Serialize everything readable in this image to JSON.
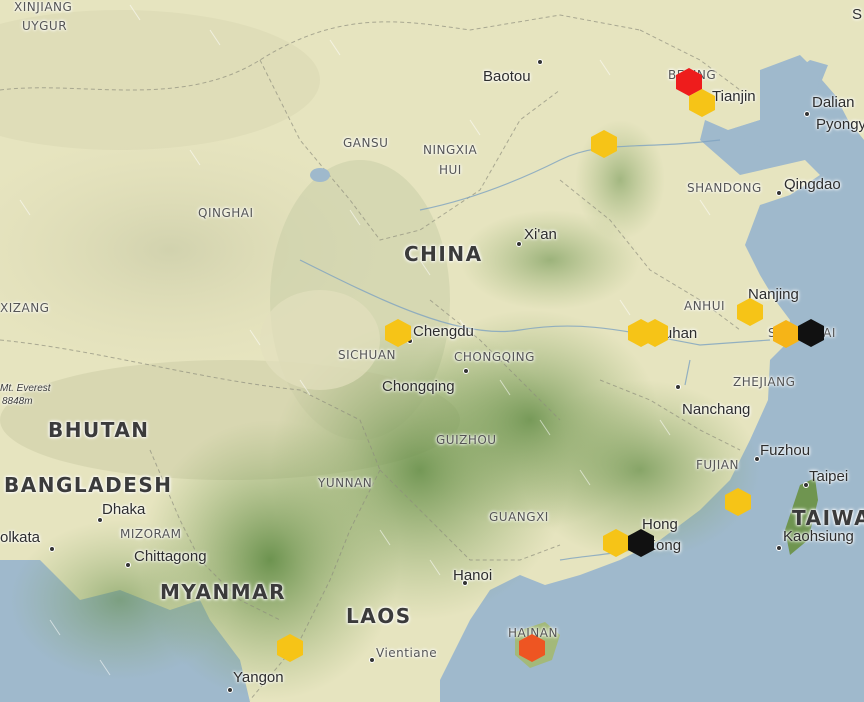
{
  "countries": [
    {
      "id": "china",
      "label": "CHINA"
    },
    {
      "id": "bhutan",
      "label": "BHUTAN"
    },
    {
      "id": "bangladesh",
      "label": "BANGLADESH"
    },
    {
      "id": "myanmar",
      "label": "MYANMAR"
    },
    {
      "id": "laos",
      "label": "LAOS"
    },
    {
      "id": "taiwan",
      "label": "TAIWA"
    }
  ],
  "provinces": [
    {
      "id": "xinjiang",
      "label": "XINJIANG"
    },
    {
      "id": "uygur",
      "label": "UYGUR"
    },
    {
      "id": "gansu",
      "label": "GANSU"
    },
    {
      "id": "ningxia",
      "label": "NINGXIA"
    },
    {
      "id": "hui",
      "label": "HUI"
    },
    {
      "id": "qinghai",
      "label": "QINGHAI"
    },
    {
      "id": "xizang",
      "label": "XIZANG"
    },
    {
      "id": "shandong",
      "label": "SHANDONG"
    },
    {
      "id": "anhui",
      "label": "ANHUI"
    },
    {
      "id": "sichuan",
      "label": "SICHUAN"
    },
    {
      "id": "chongqing-prov",
      "label": "CHONGQING"
    },
    {
      "id": "zhejiang",
      "label": "ZHEJIANG"
    },
    {
      "id": "guizhou",
      "label": "GUIZHOU"
    },
    {
      "id": "fujian",
      "label": "FUJIAN"
    },
    {
      "id": "yunnan",
      "label": "YUNNAN"
    },
    {
      "id": "guangxi",
      "label": "GUANGXI"
    },
    {
      "id": "mizoram",
      "label": "MIZORAM"
    },
    {
      "id": "hainan",
      "label": "HAINAN"
    }
  ],
  "cities": [
    {
      "id": "baotou",
      "label": "Baotou"
    },
    {
      "id": "beijing",
      "label": "BEIJING"
    },
    {
      "id": "tianjin",
      "label": "Tianjin"
    },
    {
      "id": "dalian",
      "label": "Dalian"
    },
    {
      "id": "pyongyang",
      "label": "Pyongy"
    },
    {
      "id": "qingdao",
      "label": "Qingdao"
    },
    {
      "id": "xian",
      "label": "Xi'an"
    },
    {
      "id": "nanjing",
      "label": "Nanjing"
    },
    {
      "id": "shanghai",
      "label": "SHANGHAI"
    },
    {
      "id": "wuhan",
      "label": "Wuhan"
    },
    {
      "id": "chengdu",
      "label": "Chengdu"
    },
    {
      "id": "chongqing",
      "label": "Chongqing"
    },
    {
      "id": "nanchang",
      "label": "Nanchang"
    },
    {
      "id": "fuzhou",
      "label": "Fuzhou"
    },
    {
      "id": "taipei",
      "label": "Taipei"
    },
    {
      "id": "kaohsiung",
      "label": "Kaohsiung"
    },
    {
      "id": "hong",
      "label": "Hong"
    },
    {
      "id": "kong",
      "label": "Kong"
    },
    {
      "id": "hanoi",
      "label": "Hanoi"
    },
    {
      "id": "vientiane",
      "label": "Vientiane"
    },
    {
      "id": "yangon",
      "label": "Yangon"
    },
    {
      "id": "dhaka",
      "label": "Dhaka"
    },
    {
      "id": "chittagong",
      "label": "Chittagong"
    },
    {
      "id": "kolkata",
      "label": "olkata"
    },
    {
      "id": "s-edge",
      "label": "S"
    }
  ],
  "peak": {
    "name": "Mt. Everest",
    "elevation": "8848m"
  },
  "markers": [
    {
      "id": "beijing",
      "color": "#ee1c1c"
    },
    {
      "id": "tianjin",
      "color": "#f6c417"
    },
    {
      "id": "taiyuan",
      "color": "#f6c417"
    },
    {
      "id": "nanjing",
      "color": "#f6c417"
    },
    {
      "id": "hefei",
      "color": "#f6c417"
    },
    {
      "id": "wuhan",
      "color": "#f6c417"
    },
    {
      "id": "suzhou",
      "color": "#f6b417"
    },
    {
      "id": "shanghai",
      "color": "#111111"
    },
    {
      "id": "chengdu",
      "color": "#f6c417"
    },
    {
      "id": "xiamen",
      "color": "#f6c417"
    },
    {
      "id": "shenzhen",
      "color": "#f6c417"
    },
    {
      "id": "hongkong",
      "color": "#111111"
    },
    {
      "id": "hainan",
      "color": "#ee5522"
    },
    {
      "id": "myanmar",
      "color": "#f6c417"
    }
  ],
  "colors": {
    "sea": "#9fb9cc",
    "lowland": "#eae8c4",
    "forest": "#7fa25c",
    "highland": "#d9d9b7"
  }
}
